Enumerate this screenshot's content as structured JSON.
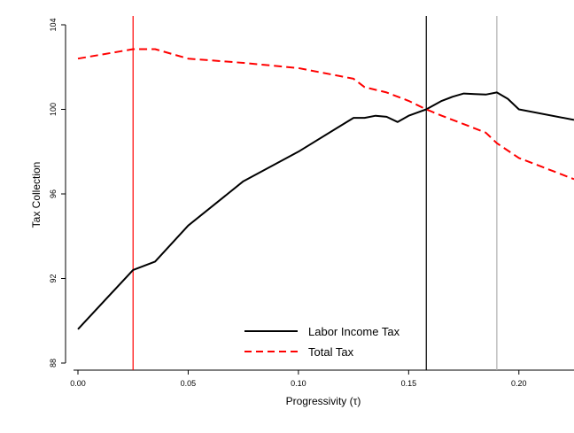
{
  "chart_data": {
    "type": "line",
    "xlabel": "Progressivity (τ)",
    "ylabel": "Tax Collection",
    "xlim": [
      0,
      0.225
    ],
    "ylim": [
      88,
      104
    ],
    "xticks": [
      0.0,
      0.05,
      0.1,
      0.15,
      0.2
    ],
    "xtick_labels": [
      "0.00",
      "0.05",
      "0.10",
      "0.15",
      "0.20"
    ],
    "yticks": [
      88,
      92,
      96,
      100,
      104
    ],
    "ytick_labels": [
      "88",
      "92",
      "96",
      "100",
      "104"
    ],
    "grid": false,
    "legend": {
      "placement": "bottom-center"
    },
    "series": [
      {
        "name": "Labor Income Tax",
        "color": "#000000",
        "dash": "solid",
        "x": [
          0.0,
          0.025,
          0.035,
          0.05,
          0.075,
          0.1,
          0.125,
          0.13,
          0.135,
          0.14,
          0.145,
          0.15,
          0.158,
          0.165,
          0.17,
          0.175,
          0.18,
          0.185,
          0.19,
          0.195,
          0.2,
          0.225
        ],
        "y": [
          89.6,
          92.4,
          92.8,
          94.5,
          96.6,
          98.0,
          99.6,
          99.6,
          99.7,
          99.65,
          99.4,
          99.7,
          100.0,
          100.4,
          100.6,
          100.75,
          100.72,
          100.7,
          100.8,
          100.5,
          100.0,
          99.5
        ]
      },
      {
        "name": "Total Tax",
        "color": "#ff0000",
        "dash": "dashed",
        "x": [
          0.0,
          0.025,
          0.035,
          0.05,
          0.075,
          0.1,
          0.125,
          0.13,
          0.14,
          0.15,
          0.158,
          0.165,
          0.175,
          0.185,
          0.19,
          0.2,
          0.225
        ],
        "y": [
          102.4,
          102.85,
          102.85,
          102.4,
          102.2,
          101.95,
          101.45,
          101.05,
          100.8,
          100.4,
          100.0,
          99.7,
          99.3,
          98.9,
          98.4,
          97.7,
          96.7
        ]
      }
    ],
    "vlines": [
      {
        "x": 0.025,
        "color": "#ff0000"
      },
      {
        "x": 0.158,
        "color": "#000000"
      },
      {
        "x": 0.19,
        "color": "#b0b0b0"
      }
    ]
  }
}
